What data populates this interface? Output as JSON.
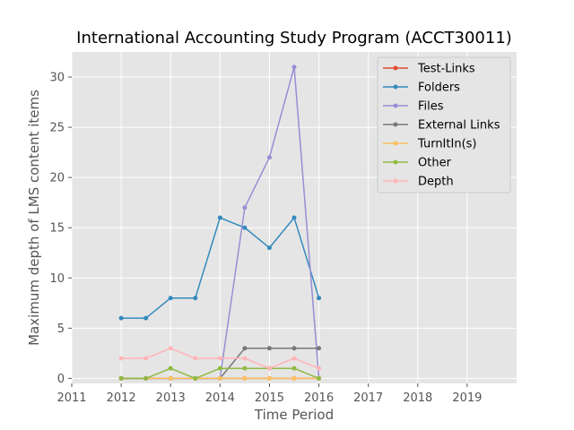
{
  "chart_data": {
    "type": "line",
    "title": "International Accounting Study Program (ACCT30011)",
    "xlabel": "Time Period",
    "ylabel": "Maximum depth of LMS content items",
    "xlim": [
      2011,
      2020
    ],
    "ylim": [
      -0.5,
      32.5
    ],
    "xticks": [
      2011,
      2012,
      2013,
      2014,
      2015,
      2016,
      2017,
      2018,
      2019
    ],
    "yticks": [
      0,
      5,
      10,
      15,
      20,
      25,
      30
    ],
    "grid": true,
    "legend_position": "top-right",
    "x": [
      2012,
      2012.5,
      2013,
      2013.5,
      2014,
      2014.5,
      2015,
      2015.5,
      2016
    ],
    "series": [
      {
        "name": "Test-Links",
        "color": "#e24a33",
        "values": [
          0,
          0,
          0,
          0,
          0,
          0,
          0,
          0,
          0
        ]
      },
      {
        "name": "Folders",
        "color": "#348abd",
        "values": [
          6,
          6,
          8,
          8,
          16,
          15,
          13,
          16,
          8
        ]
      },
      {
        "name": "Files",
        "color": "#988ed5",
        "values": [
          0,
          0,
          0,
          0,
          0,
          17,
          22,
          31,
          0
        ]
      },
      {
        "name": "External Links",
        "color": "#777777",
        "values": [
          0,
          0,
          0,
          0,
          0,
          3,
          3,
          3,
          3
        ]
      },
      {
        "name": "TurnItIn(s)",
        "color": "#fbc15e",
        "values": [
          0,
          0,
          0,
          0,
          0,
          0,
          0,
          0,
          0
        ]
      },
      {
        "name": "Other",
        "color": "#8eba42",
        "values": [
          0,
          0,
          1,
          0,
          1,
          1,
          1,
          1,
          0
        ]
      },
      {
        "name": "Depth",
        "color": "#ffb5b8",
        "values": [
          2,
          2,
          3,
          2,
          2,
          2,
          1,
          2,
          1
        ]
      }
    ]
  }
}
